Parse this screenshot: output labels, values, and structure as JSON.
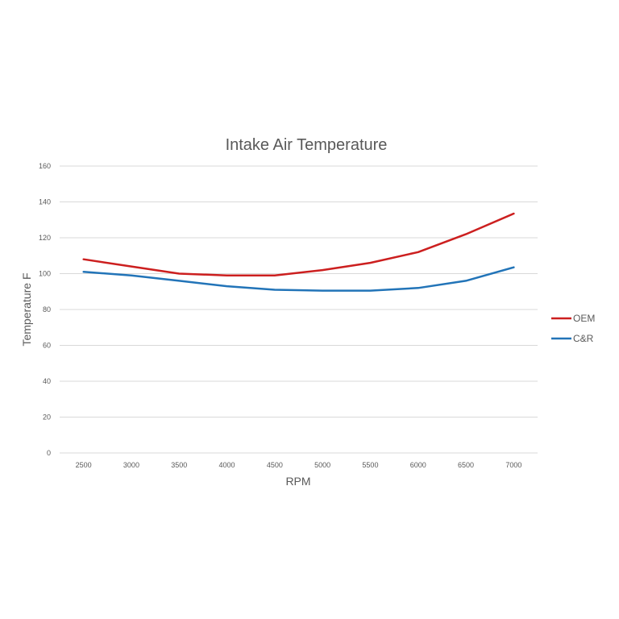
{
  "chart_data": {
    "type": "line",
    "title": "Intake Air Temperature",
    "xlabel": "RPM",
    "ylabel": "Temperature F",
    "categories": [
      "2500",
      "3000",
      "3500",
      "4000",
      "4500",
      "5000",
      "5500",
      "6000",
      "6500",
      "7000"
    ],
    "ylim": [
      0,
      160
    ],
    "yticks": [
      "0",
      "20",
      "40",
      "60",
      "80",
      "100",
      "120",
      "140",
      "160"
    ],
    "grid": true,
    "legend_position": "right",
    "series": [
      {
        "name": "OEM",
        "color": "#cc1f1f",
        "values": [
          108,
          104,
          100,
          99,
          99,
          102,
          106,
          112,
          122,
          133.5
        ]
      },
      {
        "name": "C&R",
        "color": "#2274b8",
        "values": [
          101,
          99,
          96,
          93,
          91,
          90.5,
          90.5,
          92,
          96,
          103.5
        ]
      }
    ]
  }
}
